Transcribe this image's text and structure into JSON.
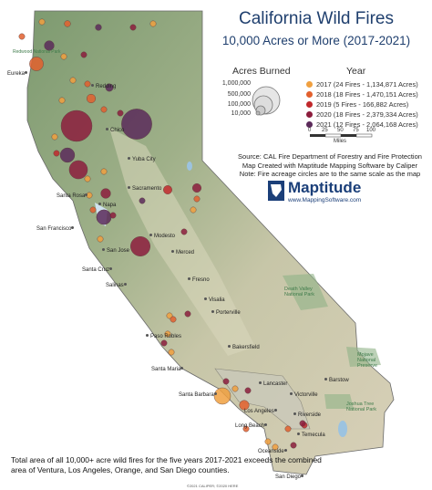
{
  "title": "California Wild Fires",
  "subtitle": "10,000 Acres or More (2017-2021)",
  "legend": {
    "size_header": "Acres Burned",
    "year_header": "Year",
    "size_labels": [
      "1,000,000",
      "500,000",
      "100,000",
      "10,000"
    ],
    "years": [
      {
        "label": "2017  (24 Fires - 1,134,871 Acres)",
        "color": "#f0a040"
      },
      {
        "label": "2018  (18 Fires - 1,470,151 Acres)",
        "color": "#e2602e"
      },
      {
        "label": "2019  (5 Fires - 166,882 Acres)",
        "color": "#c0282b"
      },
      {
        "label": "2020  (18 Fires - 2,379,334 Acres)",
        "color": "#8c1d3d"
      },
      {
        "label": "2021  (12 Fires - 2,064,168 Acres)",
        "color": "#5b2a5a"
      }
    ],
    "scale_ticks": [
      "0",
      "25",
      "50",
      "75",
      "100"
    ],
    "scale_unit": "Miles"
  },
  "source": {
    "line1": "Source: CAL Fire Department of Forestry and Fire Protection",
    "line2": "Map Created with Maptitude Mapping Software by Caliper",
    "line3": "Note: Fire acreage circles are to the same scale as the map"
  },
  "logo": {
    "name": "Maptitude",
    "url": "www.MappingSoftware.com"
  },
  "footer": "Total area of all 10,000+ acre wild fires for the five years 2017-2021 exceeds the combined area of Ventura, Los Angeles, Orange, and San Diego counties.",
  "copyright": "©2021 CALIPER; ©2020 HERE",
  "cities": [
    {
      "name": "Redding"
    },
    {
      "name": "Eureka"
    },
    {
      "name": "Chico"
    },
    {
      "name": "Yuba City"
    },
    {
      "name": "Sacramento"
    },
    {
      "name": "Santa Rosa"
    },
    {
      "name": "Napa"
    },
    {
      "name": "San Francisco"
    },
    {
      "name": "San Jose"
    },
    {
      "name": "Santa Cruz"
    },
    {
      "name": "Salinas"
    },
    {
      "name": "Modesto"
    },
    {
      "name": "Merced"
    },
    {
      "name": "Fresno"
    },
    {
      "name": "Visalia"
    },
    {
      "name": "Porterville"
    },
    {
      "name": "Paso Robles"
    },
    {
      "name": "Bakersfield"
    },
    {
      "name": "Santa Maria"
    },
    {
      "name": "Santa Barbara"
    },
    {
      "name": "Lancaster"
    },
    {
      "name": "Victorville"
    },
    {
      "name": "Los Angeles"
    },
    {
      "name": "Riverside"
    },
    {
      "name": "Long Beach"
    },
    {
      "name": "Temecula"
    },
    {
      "name": "Oceanside"
    },
    {
      "name": "San Diego"
    },
    {
      "name": "Barstow"
    },
    {
      "name": "Redwood National Park"
    }
  ],
  "park_labels": [
    {
      "name": "Death Valley National Park"
    },
    {
      "name": "Joshua Tree National Park"
    },
    {
      "name": "Mojave National Preserve"
    }
  ],
  "fires": [
    {
      "year": "2017",
      "acres": 20000
    },
    {
      "year": "2018",
      "acres": 40000
    },
    {
      "year": "2021",
      "acres": 40000
    },
    {
      "year": "2020",
      "acres": 20000
    },
    {
      "year": "2017",
      "acres": 15000
    },
    {
      "year": "2018",
      "acres": 20000
    },
    {
      "year": "2021",
      "acres": 100000
    },
    {
      "year": "2018",
      "acres": 200000
    },
    {
      "year": "2017",
      "acres": 15000
    },
    {
      "year": "2020",
      "acres": 15000
    },
    {
      "year": "2018",
      "acres": 30000
    },
    {
      "year": "2017",
      "acres": 12000
    },
    {
      "year": "2021",
      "acres": 60000
    },
    {
      "year": "2020",
      "acres": 1000000
    },
    {
      "year": "2021",
      "acres": 960000
    },
    {
      "year": "2020",
      "acres": 25000
    },
    {
      "year": "2018",
      "acres": 80000
    },
    {
      "year": "2017",
      "acres": 20000
    },
    {
      "year": "2018",
      "acres": 30000
    },
    {
      "year": "2017",
      "acres": 15000
    },
    {
      "year": "2019",
      "acres": 20000
    },
    {
      "year": "2021",
      "acres": 220000
    },
    {
      "year": "2020",
      "acres": 350000
    },
    {
      "year": "2017",
      "acres": 30000
    },
    {
      "year": "2020",
      "acres": 100000
    },
    {
      "year": "2017",
      "acres": 15000
    },
    {
      "year": "2018",
      "acres": 20000
    },
    {
      "year": "2017",
      "acres": 15000
    },
    {
      "year": "2019",
      "acres": 77000
    },
    {
      "year": "2020",
      "acres": 80000
    },
    {
      "year": "2020",
      "acres": 400000
    },
    {
      "year": "2021",
      "acres": 230000
    },
    {
      "year": "2020",
      "acres": 20000
    },
    {
      "year": "2017",
      "acres": 15000
    },
    {
      "year": "2018",
      "acres": 20000
    },
    {
      "year": "2020",
      "acres": 20000
    },
    {
      "year": "2021",
      "acres": 15000
    },
    {
      "year": "2017",
      "acres": 15000
    },
    {
      "year": "2020",
      "acres": 30000
    },
    {
      "year": "2017",
      "acres": 20000
    },
    {
      "year": "2018",
      "acres": 15000
    },
    {
      "year": "2017",
      "acres": 15000
    },
    {
      "year": "2020",
      "acres": 20000
    },
    {
      "year": "2017",
      "acres": 15000
    },
    {
      "year": "2017",
      "acres": 280000
    },
    {
      "year": "2018",
      "acres": 97000
    },
    {
      "year": "2020",
      "acres": 20000
    },
    {
      "year": "2017",
      "acres": 15000
    },
    {
      "year": "2020",
      "acres": 20000
    },
    {
      "year": "2019",
      "acres": 15000
    },
    {
      "year": "2018",
      "acres": 25000
    },
    {
      "year": "2020",
      "acres": 30000
    },
    {
      "year": "2017",
      "acres": 15000
    },
    {
      "year": "2017",
      "acres": 20000
    },
    {
      "year": "2020",
      "acres": 15000
    },
    {
      "year": "2018",
      "acres": 15000
    }
  ]
}
